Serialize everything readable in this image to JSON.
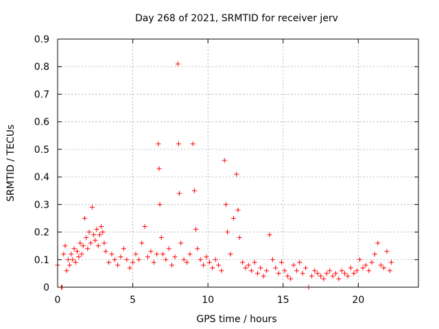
{
  "chart_data": {
    "type": "scatter",
    "title": "Day 268 of 2021, SRMTID for receiver jerv",
    "xlabel": "GPS time / hours",
    "ylabel": "SRMTID / TECUs",
    "xlim": [
      0,
      24
    ],
    "ylim": [
      0,
      0.9
    ],
    "xticks": [
      0,
      5,
      10,
      15,
      20
    ],
    "xtick_labels": [
      "0",
      "5",
      "10",
      "15",
      "20"
    ],
    "yticks": [
      0,
      0.1,
      0.2,
      0.3,
      0.4,
      0.5,
      0.6,
      0.7,
      0.8,
      0.9
    ],
    "ytick_labels": [
      "0",
      "0.1",
      "0.2",
      "0.3",
      "0.4",
      "0.5",
      "0.6",
      "0.7",
      "0.8",
      "0.9"
    ],
    "grid": true,
    "marker": "+",
    "color": "#ff0000",
    "series": [
      {
        "name": "SRMTID",
        "x": [
          0.0,
          0.25,
          0.3,
          0.4,
          0.5,
          0.6,
          0.7,
          0.8,
          0.9,
          1.0,
          1.1,
          1.2,
          1.3,
          1.4,
          1.5,
          1.6,
          1.7,
          1.8,
          1.9,
          2.0,
          2.1,
          2.2,
          2.3,
          2.4,
          2.5,
          2.6,
          2.7,
          2.8,
          2.9,
          3.0,
          3.1,
          3.2,
          3.4,
          3.6,
          3.8,
          4.0,
          4.2,
          4.4,
          4.6,
          4.8,
          5.0,
          5.2,
          5.4,
          5.6,
          5.8,
          6.0,
          6.2,
          6.4,
          6.6,
          6.7,
          6.75,
          6.8,
          6.9,
          7.0,
          7.2,
          7.4,
          7.6,
          7.8,
          8.0,
          8.05,
          8.1,
          8.2,
          8.4,
          8.6,
          8.8,
          9.0,
          9.1,
          9.2,
          9.3,
          9.5,
          9.7,
          9.9,
          10.1,
          10.3,
          10.5,
          10.7,
          10.9,
          11.1,
          11.2,
          11.3,
          11.5,
          11.7,
          11.9,
          12.0,
          12.1,
          12.3,
          12.5,
          12.7,
          12.9,
          13.1,
          13.3,
          13.5,
          13.7,
          13.9,
          14.1,
          14.3,
          14.5,
          14.7,
          14.9,
          15.1,
          15.3,
          15.5,
          15.7,
          15.9,
          16.1,
          16.3,
          16.5,
          16.7,
          16.9,
          17.1,
          17.3,
          17.5,
          17.7,
          17.9,
          18.1,
          18.3,
          18.5,
          18.7,
          18.9,
          19.1,
          19.3,
          19.5,
          19.7,
          19.9,
          20.1,
          20.3,
          20.5,
          20.7,
          20.9,
          21.1,
          21.3,
          21.5,
          21.7,
          21.9,
          22.1,
          22.2
        ],
        "y": [
          0.08,
          0.0,
          0.0,
          0.12,
          0.15,
          0.06,
          0.1,
          0.08,
          0.12,
          0.1,
          0.14,
          0.09,
          0.13,
          0.11,
          0.16,
          0.12,
          0.15,
          0.25,
          0.18,
          0.14,
          0.2,
          0.16,
          0.29,
          0.19,
          0.17,
          0.21,
          0.15,
          0.19,
          0.22,
          0.2,
          0.16,
          0.13,
          0.09,
          0.12,
          0.1,
          0.08,
          0.11,
          0.14,
          0.1,
          0.07,
          0.09,
          0.12,
          0.1,
          0.16,
          0.22,
          0.11,
          0.13,
          0.09,
          0.12,
          0.52,
          0.43,
          0.3,
          0.18,
          0.12,
          0.1,
          0.14,
          0.08,
          0.11,
          0.81,
          0.52,
          0.34,
          0.16,
          0.1,
          0.09,
          0.12,
          0.52,
          0.35,
          0.21,
          0.14,
          0.1,
          0.08,
          0.11,
          0.09,
          0.07,
          0.1,
          0.08,
          0.06,
          0.46,
          0.3,
          0.2,
          0.12,
          0.25,
          0.41,
          0.28,
          0.18,
          0.09,
          0.07,
          0.08,
          0.06,
          0.09,
          0.05,
          0.07,
          0.04,
          0.06,
          0.19,
          0.1,
          0.07,
          0.05,
          0.09,
          0.06,
          0.04,
          0.03,
          0.08,
          0.06,
          0.09,
          0.05,
          0.07,
          0.0,
          0.04,
          0.06,
          0.05,
          0.04,
          0.03,
          0.05,
          0.06,
          0.04,
          0.05,
          0.03,
          0.06,
          0.05,
          0.04,
          0.07,
          0.05,
          0.06,
          0.1,
          0.07,
          0.08,
          0.06,
          0.09,
          0.12,
          0.16,
          0.08,
          0.07,
          0.13,
          0.06,
          0.09
        ]
      }
    ]
  }
}
